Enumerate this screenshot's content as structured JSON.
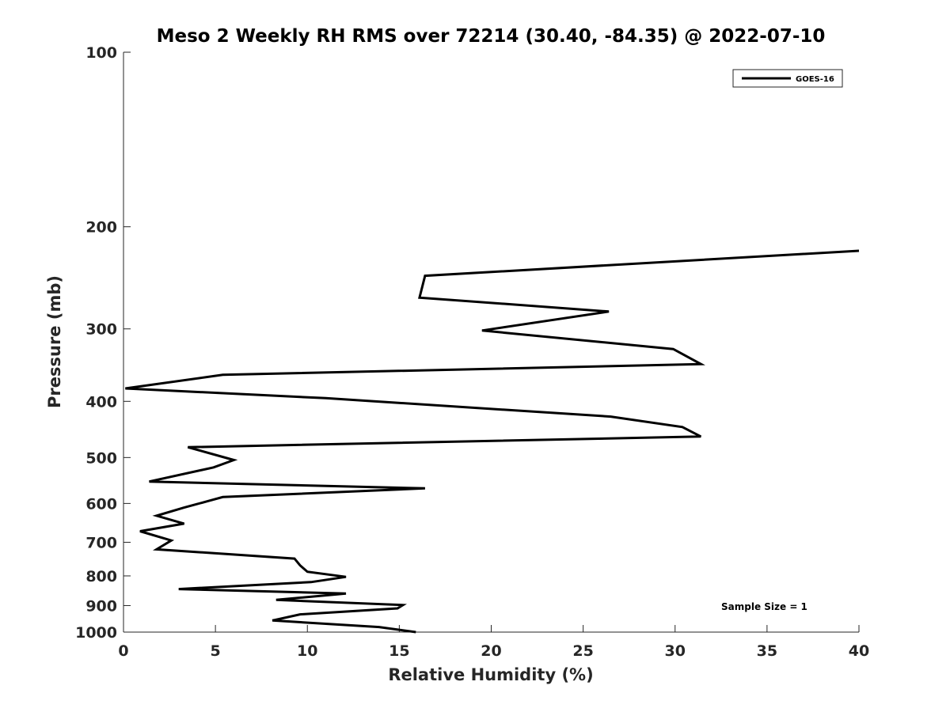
{
  "chart_data": {
    "type": "line",
    "title": "Meso 2 Weekly RH RMS over 72214 (30.40, -84.35) @ 2022-07-10",
    "xlabel": "Relative Humidity (%)",
    "ylabel": "Pressure (mb)",
    "xlim": [
      0,
      40
    ],
    "ylim": [
      100,
      1000
    ],
    "y_scale": "log",
    "y_reversed": true,
    "grid": false,
    "x_ticks": [
      "0",
      "5",
      "10",
      "15",
      "20",
      "25",
      "30",
      "35",
      "40"
    ],
    "y_ticks": [
      "100",
      "200",
      "300",
      "400",
      "500",
      "600",
      "700",
      "800",
      "900",
      "1000"
    ],
    "legend": {
      "position": "top-right",
      "entries": [
        "GOES-16"
      ]
    },
    "annotation": "Sample Size = 1",
    "series": [
      {
        "name": "GOES-16",
        "color": "#000000",
        "x": [
          40.0,
          16.4,
          16.1,
          26.4,
          19.5,
          29.9,
          31.4,
          5.4,
          0.1,
          11.0,
          26.5,
          30.4,
          31.4,
          3.5,
          6.0,
          4.9,
          1.4,
          16.4,
          5.4,
          3.3,
          1.8,
          3.3,
          0.9,
          2.6,
          1.8,
          9.3,
          9.6,
          10.0,
          12.1,
          10.2,
          3.0,
          12.1,
          8.3,
          15.2,
          14.9,
          9.6,
          8.1,
          13.9,
          15.9
        ],
        "y": [
          220,
          243,
          265,
          280,
          302,
          325,
          345,
          360,
          380,
          395,
          425,
          443,
          460,
          480,
          505,
          520,
          550,
          565,
          585,
          610,
          630,
          650,
          670,
          695,
          720,
          747,
          767,
          787,
          803,
          820,
          843,
          858,
          880,
          898,
          910,
          932,
          955,
          980,
          1000
        ]
      }
    ]
  }
}
